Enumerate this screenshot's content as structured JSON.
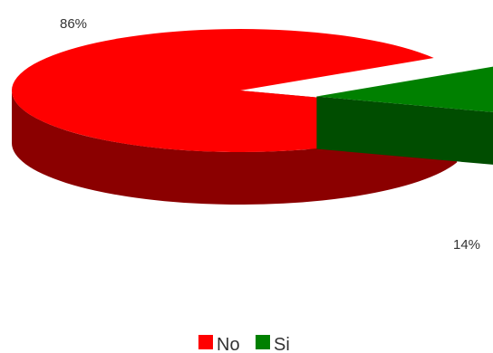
{
  "chart_data": {
    "type": "pie",
    "style": "3d-exploded",
    "categories": [
      "No",
      "Si"
    ],
    "values": [
      86,
      14
    ],
    "data_labels": [
      "86%",
      "14%"
    ],
    "colors": {
      "No": {
        "top": "#ff0000",
        "side": "#8b0000"
      },
      "Si": {
        "top": "#008000",
        "side": "#004d00"
      }
    },
    "legend": {
      "placement": "bottom",
      "items": [
        {
          "label": "No",
          "color": "#ff0000"
        },
        {
          "label": "Si",
          "color": "#008000"
        }
      ]
    }
  }
}
